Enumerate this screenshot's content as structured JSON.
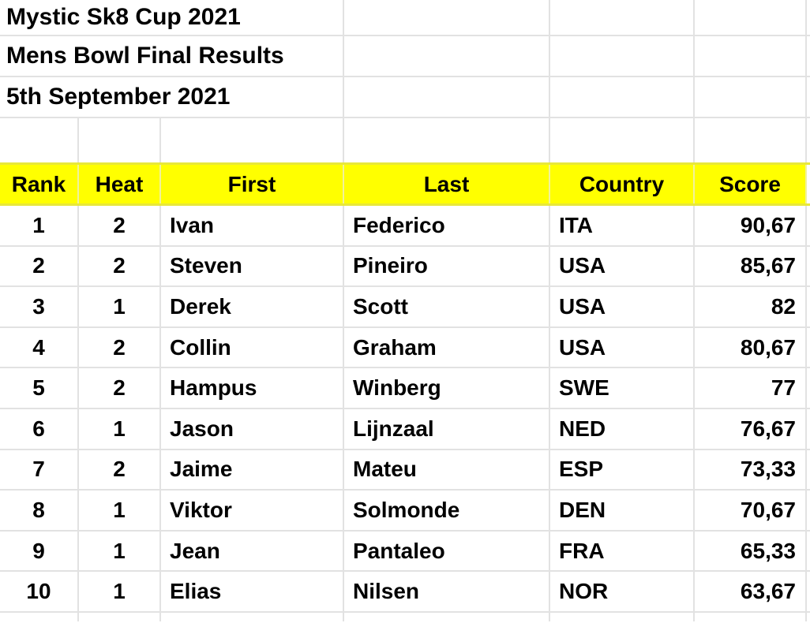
{
  "document": {
    "title_line1": "Mystic Sk8 Cup 2021",
    "title_line2": "Mens Bowl Final Results",
    "title_line3": "5th September 2021"
  },
  "table": {
    "headers": {
      "rank": "Rank",
      "heat": "Heat",
      "first": "First",
      "last": "Last",
      "country": "Country",
      "score": "Score"
    },
    "rows": [
      {
        "rank": "1",
        "heat": "2",
        "first": "Ivan",
        "last": "Federico",
        "country": "ITA",
        "score": "90,67"
      },
      {
        "rank": "2",
        "heat": "2",
        "first": "Steven",
        "last": "Pineiro",
        "country": "USA",
        "score": "85,67"
      },
      {
        "rank": "3",
        "heat": "1",
        "first": "Derek",
        "last": "Scott",
        "country": "USA",
        "score": "82"
      },
      {
        "rank": "4",
        "heat": "2",
        "first": "Collin",
        "last": "Graham",
        "country": "USA",
        "score": "80,67"
      },
      {
        "rank": "5",
        "heat": "2",
        "first": "Hampus",
        "last": "Winberg",
        "country": "SWE",
        "score": "77"
      },
      {
        "rank": "6",
        "heat": "1",
        "first": "Jason",
        "last": "Lijnzaal",
        "country": "NED",
        "score": "76,67"
      },
      {
        "rank": "7",
        "heat": "2",
        "first": "Jaime",
        "last": "Mateu",
        "country": "ESP",
        "score": "73,33"
      },
      {
        "rank": "8",
        "heat": "1",
        "first": "Viktor",
        "last": "Solmonde",
        "country": "DEN",
        "score": "70,67"
      },
      {
        "rank": "9",
        "heat": "1",
        "first": "Jean",
        "last": "Pantaleo",
        "country": "FRA",
        "score": "65,33"
      },
      {
        "rank": "10",
        "heat": "1",
        "first": "Elias",
        "last": "Nilsen",
        "country": "NOR",
        "score": "63,67"
      }
    ]
  },
  "colors": {
    "header_background": "#ffff00",
    "gridline": "#e2e2e2",
    "header_gridline_vertical": "#f1f19c",
    "header_gridline_horizontal": "#e8e83a",
    "text": "#000000",
    "background": "#ffffff"
  }
}
